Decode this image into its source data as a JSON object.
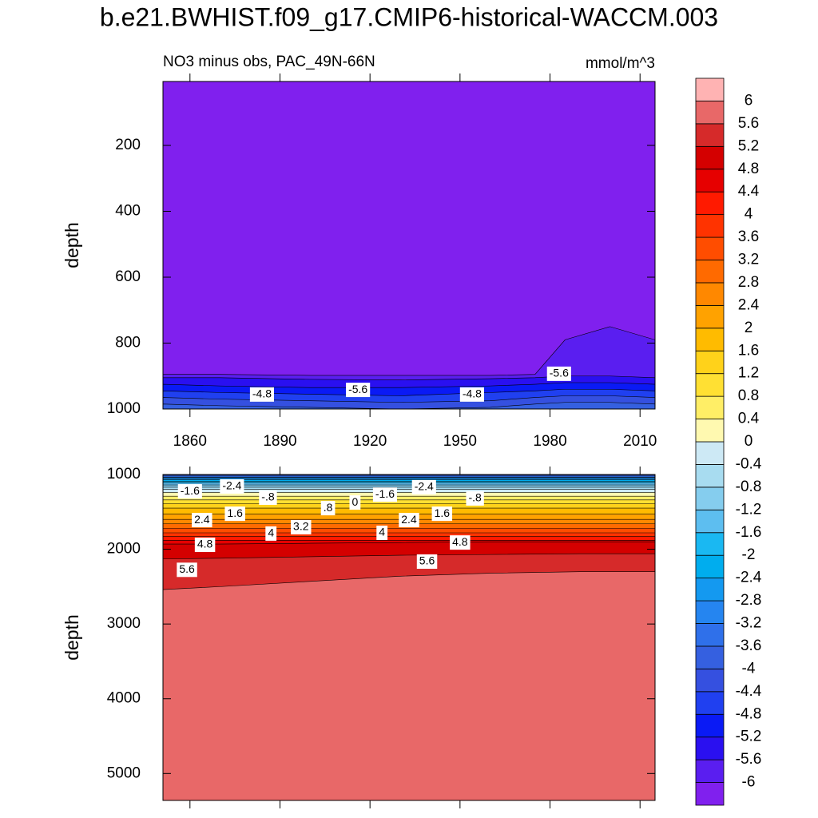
{
  "chart_data": {
    "type": "contour",
    "title": "b.e21.BWHIST.f09_g17.CMIP6-historical-WACCM.003",
    "subtitle": "NO3 minus obs, PAC_49N-66N",
    "units": "mmol/m^3",
    "colorbar": {
      "levels": [
        -6,
        -5.6,
        -5.2,
        -4.8,
        -4.4,
        -4,
        -3.6,
        -3.2,
        -2.8,
        -2.4,
        -2,
        -1.6,
        -1.2,
        -0.8,
        -0.4,
        0,
        0.4,
        0.8,
        1.2,
        1.6,
        2,
        2.4,
        2.8,
        3.2,
        3.6,
        4,
        4.4,
        4.8,
        5.2,
        5.6,
        6
      ],
      "colors": [
        "#8020ee",
        "#5a1ef0",
        "#2a10f0",
        "#0a1af5",
        "#2040f0",
        "#3550e0",
        "#3560e0",
        "#2f70ea",
        "#2585f0",
        "#1499f0",
        "#00adee",
        "#1ab8f2",
        "#5dbef0",
        "#85cdee",
        "#a8dcf0",
        "#cde9f5",
        "#fff9b0",
        "#ffee66",
        "#ffe033",
        "#ffd21a",
        "#ffbb00",
        "#ffa200",
        "#ff8800",
        "#ff6a00",
        "#ff4d00",
        "#ff3300",
        "#ff1a00",
        "#e60000",
        "#d40000",
        "#d62a2a",
        "#e86868",
        "#ffb3b3"
      ]
    },
    "panels": [
      {
        "ylabel": "depth",
        "xlim": [
          1851,
          2015
        ],
        "ylim": [
          6,
          1000
        ],
        "xticks": [
          1860,
          1890,
          1920,
          1950,
          1980,
          2010
        ],
        "show_xtick_labels": true,
        "yticks": [
          200,
          400,
          600,
          800,
          1000
        ],
        "x": [
          1851,
          1870,
          1900,
          1930,
          1960,
          1975,
          1985,
          2000,
          2015
        ],
        "contours": [
          {
            "level": -6,
            "depth": [
              895,
              895,
              898,
              898,
              898,
              895,
              790,
              750,
              790
            ]
          },
          {
            "level": -5.6,
            "depth": [
              905,
              905,
              910,
              912,
              908,
              905,
              900,
              900,
              905
            ]
          },
          {
            "level": -5.2,
            "depth": [
              925,
              930,
              935,
              935,
              930,
              925,
              920,
              920,
              925
            ]
          },
          {
            "level": -4.8,
            "depth": [
              945,
              950,
              955,
              960,
              950,
              945,
              940,
              940,
              945
            ]
          },
          {
            "level": -4.4,
            "depth": [
              965,
              970,
              975,
              980,
              975,
              965,
              960,
              960,
              965
            ]
          },
          {
            "level": -4,
            "depth": [
              985,
              990,
              995,
              1000,
              995,
              985,
              980,
              980,
              985
            ]
          }
        ],
        "labels": [
          {
            "text": "-4.8",
            "x": 1884,
            "y": 956
          },
          {
            "text": "-5.6",
            "x": 1916,
            "y": 942
          },
          {
            "text": "-4.8",
            "x": 1954,
            "y": 956
          },
          {
            "text": "-5.6",
            "x": 1983,
            "y": 893
          }
        ]
      },
      {
        "ylabel": "depth",
        "xlim": [
          1851,
          2015
        ],
        "ylim": [
          1000,
          5360
        ],
        "xticks": [
          1860,
          1890,
          1920,
          1950,
          1980,
          2010
        ],
        "show_xtick_labels": false,
        "yticks": [
          1000,
          2000,
          3000,
          4000,
          5000
        ],
        "x": [
          1851,
          1870,
          1900,
          1930,
          1960,
          1990,
          2015
        ],
        "contours": [
          {
            "level": -4.4,
            "depth": [
              990,
              990,
              990,
              990,
              990,
              990,
              990
            ]
          },
          {
            "level": -4,
            "depth": [
              1005,
              1005,
              1005,
              1005,
              1005,
              1005,
              1005
            ]
          },
          {
            "level": -3.6,
            "depth": [
              1020,
              1020,
              1020,
              1020,
              1020,
              1020,
              1020
            ]
          },
          {
            "level": -3.2,
            "depth": [
              1035,
              1035,
              1035,
              1035,
              1035,
              1035,
              1035
            ]
          },
          {
            "level": -2.8,
            "depth": [
              1050,
              1050,
              1050,
              1050,
              1050,
              1050,
              1050
            ]
          },
          {
            "level": -2.4,
            "depth": [
              1070,
              1070,
              1070,
              1070,
              1070,
              1070,
              1070
            ]
          },
          {
            "level": -2,
            "depth": [
              1090,
              1090,
              1090,
              1090,
              1090,
              1090,
              1090
            ]
          },
          {
            "level": -1.6,
            "depth": [
              1110,
              1110,
              1110,
              1110,
              1110,
              1110,
              1110
            ]
          },
          {
            "level": -1.2,
            "depth": [
              1140,
              1140,
              1140,
              1140,
              1140,
              1140,
              1140
            ]
          },
          {
            "level": -0.8,
            "depth": [
              1170,
              1170,
              1170,
              1170,
              1170,
              1170,
              1170
            ]
          },
          {
            "level": -0.4,
            "depth": [
              1200,
              1200,
              1200,
              1200,
              1200,
              1200,
              1200
            ]
          },
          {
            "level": 0,
            "depth": [
              1240,
              1240,
              1240,
              1240,
              1240,
              1240,
              1240
            ]
          },
          {
            "level": 0.4,
            "depth": [
              1290,
              1290,
              1290,
              1290,
              1290,
              1290,
              1290
            ]
          },
          {
            "level": 0.8,
            "depth": [
              1340,
              1340,
              1340,
              1340,
              1340,
              1340,
              1340
            ]
          },
          {
            "level": 1.2,
            "depth": [
              1390,
              1390,
              1390,
              1390,
              1390,
              1390,
              1390
            ]
          },
          {
            "level": 1.6,
            "depth": [
              1450,
              1450,
              1450,
              1450,
              1450,
              1450,
              1450
            ]
          },
          {
            "level": 2,
            "depth": [
              1530,
              1530,
              1530,
              1530,
              1530,
              1530,
              1530
            ]
          },
          {
            "level": 2.4,
            "depth": [
              1600,
              1600,
              1600,
              1600,
              1600,
              1600,
              1600
            ]
          },
          {
            "level": 2.8,
            "depth": [
              1660,
              1660,
              1660,
              1660,
              1660,
              1660,
              1660
            ]
          },
          {
            "level": 3.2,
            "depth": [
              1720,
              1720,
              1720,
              1720,
              1720,
              1720,
              1720
            ]
          },
          {
            "level": 3.6,
            "depth": [
              1780,
              1780,
              1780,
              1780,
              1780,
              1780,
              1780
            ]
          },
          {
            "level": 4,
            "depth": [
              1830,
              1830,
              1830,
              1830,
              1830,
              1830,
              1830
            ]
          },
          {
            "level": 4.4,
            "depth": [
              1880,
              1880,
              1880,
              1880,
              1880,
              1880,
              1880
            ]
          },
          {
            "level": 4.8,
            "depth": [
              1930,
              1930,
              1920,
              1910,
              1900,
              1900,
              1900
            ]
          },
          {
            "level": 5.2,
            "depth": [
              2130,
              2120,
              2100,
              2080,
              2070,
              2060,
              2060
            ]
          },
          {
            "level": 5.6,
            "depth": [
              2540,
              2500,
              2430,
              2360,
              2320,
              2300,
              2300
            ]
          }
        ],
        "labels": [
          {
            "text": "-1.6",
            "x": 1860,
            "y": 1225
          },
          {
            "text": "-2.4",
            "x": 1874,
            "y": 1160
          },
          {
            "text": "-.8",
            "x": 1886,
            "y": 1310
          },
          {
            "text": ".8",
            "x": 1906,
            "y": 1450
          },
          {
            "text": "0",
            "x": 1915,
            "y": 1375
          },
          {
            "text": "-1.6",
            "x": 1925,
            "y": 1270
          },
          {
            "text": "-2.4",
            "x": 1938,
            "y": 1170
          },
          {
            "text": "-.8",
            "x": 1955,
            "y": 1320
          },
          {
            "text": "2.4",
            "x": 1864,
            "y": 1610
          },
          {
            "text": "1.6",
            "x": 1875,
            "y": 1525
          },
          {
            "text": "1.6",
            "x": 1944,
            "y": 1525
          },
          {
            "text": "2.4",
            "x": 1933,
            "y": 1610
          },
          {
            "text": "3.2",
            "x": 1897,
            "y": 1705
          },
          {
            "text": "4",
            "x": 1887,
            "y": 1790
          },
          {
            "text": "4",
            "x": 1924,
            "y": 1780
          },
          {
            "text": "4.8",
            "x": 1865,
            "y": 1940
          },
          {
            "text": "4.8",
            "x": 1950,
            "y": 1910
          },
          {
            "text": "5.6",
            "x": 1859,
            "y": 2275
          },
          {
            "text": "5.6",
            "x": 1939,
            "y": 2165
          }
        ]
      }
    ]
  }
}
